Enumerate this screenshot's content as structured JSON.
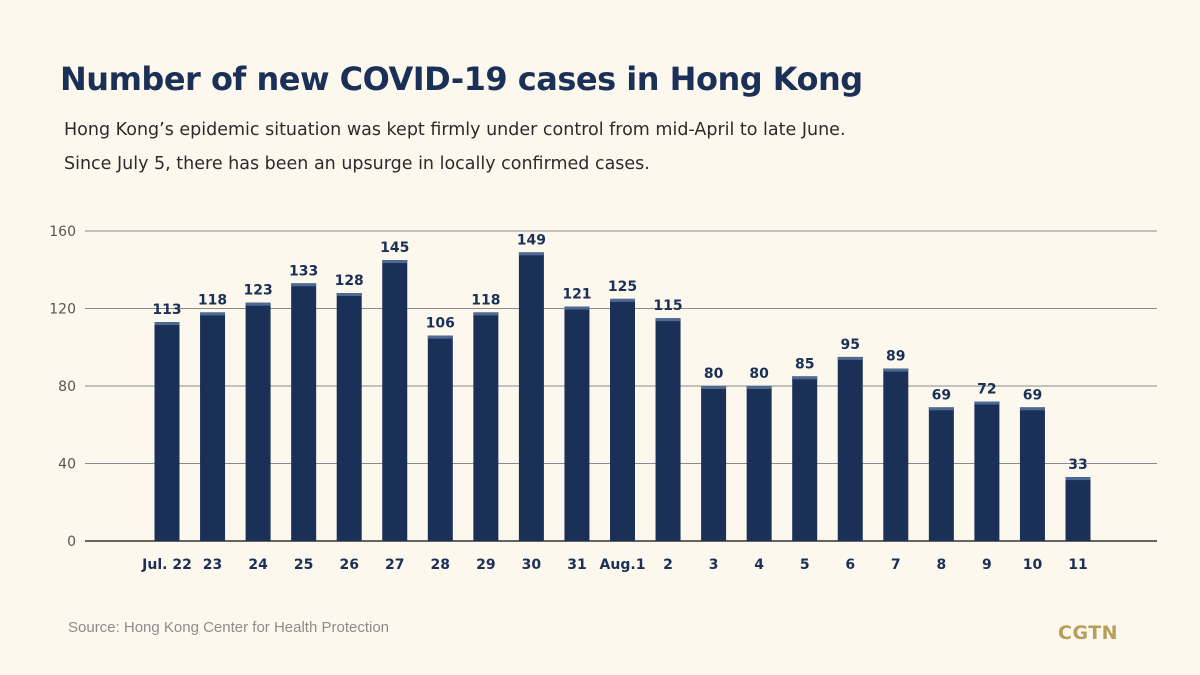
{
  "title": "Number of new COVID-19 cases in Hong Kong",
  "subtitle_line1": "Hong Kong’s epidemic situation was kept firmly under control from mid-April to late June.",
  "subtitle_line2": "Since July 5, there has been an upsurge in locally confirmed cases.",
  "source": "Source: Hong Kong Center for Health Protection",
  "logo_text": "CGTN",
  "colors": {
    "bar": "#1b3057",
    "bar_cap": "#4d6a94",
    "grid": "#8a8a8a",
    "label": "#1b3057",
    "tick": "#555555"
  },
  "chart_data": {
    "type": "bar",
    "title": "Number of new COVID-19 cases in Hong Kong",
    "xlabel": "",
    "ylabel": "",
    "categories": [
      "Jul. 22",
      "23",
      "24",
      "25",
      "26",
      "27",
      "28",
      "29",
      "30",
      "31",
      "Aug.1",
      "2",
      "3",
      "4",
      "5",
      "6",
      "7",
      "8",
      "9",
      "10",
      "11"
    ],
    "values": [
      113,
      118,
      123,
      133,
      128,
      145,
      106,
      118,
      149,
      121,
      125,
      115,
      80,
      80,
      85,
      95,
      89,
      69,
      72,
      69,
      33
    ],
    "ylim": [
      0,
      160
    ],
    "yticks": [
      0,
      40,
      80,
      120,
      160
    ],
    "grid": true,
    "data_labels": true
  }
}
